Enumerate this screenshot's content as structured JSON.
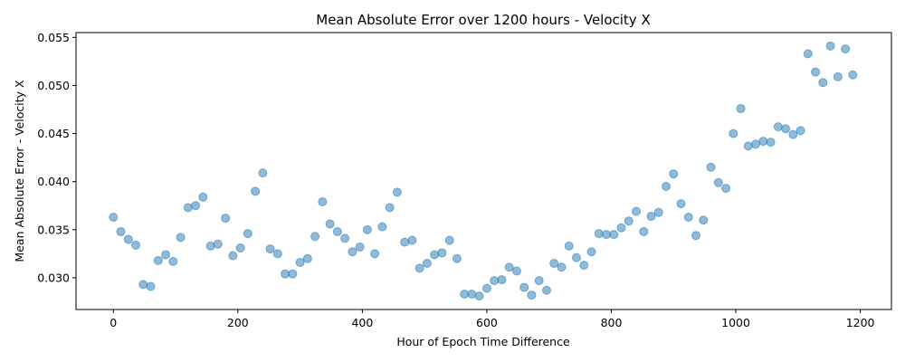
{
  "chart_data": {
    "type": "scatter",
    "title": "Mean Absolute Error over 1200 hours - Velocity X",
    "xlabel": "Hour of Epoch Time Difference",
    "ylabel": "Mean Absolute Error - Velocity X",
    "xlim": [
      -60,
      1250
    ],
    "ylim": [
      0.0267,
      0.0555
    ],
    "xticks": [
      0,
      200,
      400,
      600,
      800,
      1000,
      1200
    ],
    "xtick_labels": [
      "0",
      "200",
      "400",
      "600",
      "800",
      "1000",
      "1200"
    ],
    "yticks": [
      0.03,
      0.035,
      0.04,
      0.045,
      0.05,
      0.055
    ],
    "ytick_labels": [
      "0.030",
      "0.035",
      "0.040",
      "0.045",
      "0.050",
      "0.055"
    ],
    "grid": false,
    "legend": "none",
    "color": "#1f77b4",
    "x": [
      0,
      12,
      24,
      36,
      48,
      60,
      72,
      84,
      96,
      108,
      120,
      132,
      144,
      156,
      168,
      180,
      192,
      204,
      216,
      228,
      240,
      252,
      264,
      276,
      288,
      300,
      312,
      324,
      336,
      348,
      360,
      372,
      384,
      396,
      408,
      420,
      432,
      444,
      456,
      468,
      480,
      492,
      504,
      516,
      528,
      540,
      552,
      564,
      576,
      588,
      600,
      612,
      624,
      636,
      648,
      660,
      672,
      684,
      696,
      708,
      720,
      732,
      744,
      756,
      768,
      780,
      792,
      804,
      816,
      828,
      840,
      852,
      864,
      876,
      888,
      900,
      912,
      924,
      936,
      948,
      960,
      972,
      984,
      996,
      1008,
      1020,
      1032,
      1044,
      1056,
      1068,
      1080,
      1092,
      1104,
      1116,
      1128,
      1140,
      1152,
      1164,
      1176,
      1188
    ],
    "y": [
      0.0363,
      0.0348,
      0.034,
      0.0334,
      0.0293,
      0.0291,
      0.0318,
      0.0324,
      0.0317,
      0.0342,
      0.0373,
      0.0375,
      0.0384,
      0.0333,
      0.0335,
      0.0362,
      0.0323,
      0.0331,
      0.0346,
      0.039,
      0.0409,
      0.033,
      0.0325,
      0.0304,
      0.0304,
      0.0316,
      0.032,
      0.0343,
      0.0379,
      0.0356,
      0.0348,
      0.0341,
      0.0327,
      0.0332,
      0.035,
      0.0325,
      0.0353,
      0.0373,
      0.0389,
      0.0337,
      0.0339,
      0.031,
      0.0315,
      0.0324,
      0.0326,
      0.0339,
      0.032,
      0.0283,
      0.0283,
      0.0281,
      0.0289,
      0.0297,
      0.0298,
      0.0311,
      0.0307,
      0.029,
      0.0282,
      0.0297,
      0.0287,
      0.0315,
      0.0311,
      0.0333,
      0.0321,
      0.0313,
      0.0327,
      0.0346,
      0.0345,
      0.0345,
      0.0352,
      0.0359,
      0.0369,
      0.0348,
      0.0364,
      0.0368,
      0.0395,
      0.0408,
      0.0377,
      0.0363,
      0.0344,
      0.036,
      0.0415,
      0.0399,
      0.0393,
      0.045,
      0.0476,
      0.0437,
      0.0439,
      0.0442,
      0.0441,
      0.0457,
      0.0455,
      0.0449,
      0.0453,
      0.0533,
      0.0514,
      0.0503,
      0.0541,
      0.0509,
      0.0538,
      0.0511
    ]
  }
}
